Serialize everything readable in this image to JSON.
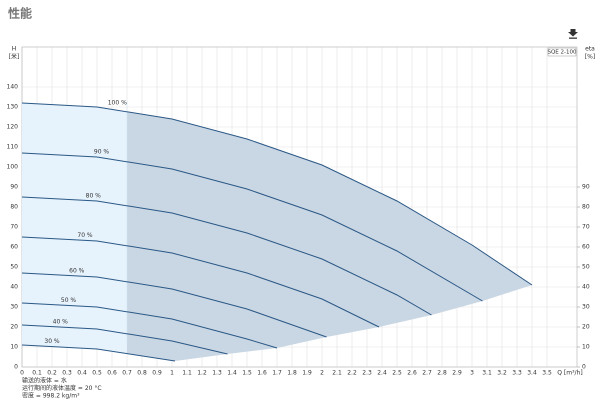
{
  "chart_data": {
    "type": "line",
    "title": "性能",
    "legend": "SQE 2-100",
    "ylabel": "H",
    "yunit": "[米]",
    "y2label": "eta",
    "y2unit": "[%]",
    "xlabel": "Q [m³/h]",
    "notes": [
      "输送的液体 = 水",
      "运行期间的液体温度 = 20 °C",
      "密度 = 998.2 kg/m³"
    ],
    "xlim": [
      0,
      3.7
    ],
    "ylim": [
      0,
      160
    ],
    "y2lim": [
      0,
      160
    ],
    "xticks": [
      0,
      0.1,
      0.2,
      0.3,
      0.4,
      0.5,
      0.6,
      0.7,
      0.8,
      0.9,
      1.0,
      1.1,
      1.2,
      1.3,
      1.4,
      1.5,
      1.6,
      1.7,
      1.8,
      1.9,
      2.0,
      2.1,
      2.2,
      2.3,
      2.4,
      2.5,
      2.6,
      2.7,
      2.8,
      2.9,
      3.0,
      3.1,
      3.2,
      3.3,
      3.4,
      3.5
    ],
    "yticks": [
      0,
      10,
      20,
      30,
      40,
      50,
      60,
      70,
      80,
      90,
      100,
      110,
      120,
      130,
      140
    ],
    "y2ticks": [
      0,
      10,
      20,
      30,
      40,
      50,
      60,
      70,
      80,
      90
    ],
    "grid": true,
    "region_split_x": 0.7,
    "region_colors": [
      "#e6f2fc",
      "#c9d6e3"
    ],
    "series": [
      {
        "name": "100 %",
        "color": "#2a5886",
        "x": [
          0,
          0.5,
          1.0,
          1.5,
          2.0,
          2.5,
          3.0,
          3.4
        ],
        "values": [
          132,
          130,
          124,
          114,
          101,
          83,
          61,
          41
        ]
      },
      {
        "name": "90 %",
        "color": "#2a5886",
        "x": [
          0,
          0.5,
          1.0,
          1.5,
          2.0,
          2.5,
          3.07
        ],
        "values": [
          107,
          105,
          99,
          89,
          76,
          58,
          33
        ]
      },
      {
        "name": "80 %",
        "color": "#2a5886",
        "x": [
          0,
          0.5,
          1.0,
          1.5,
          2.0,
          2.5,
          2.73
        ],
        "values": [
          85,
          83,
          77,
          67,
          54,
          36,
          26
        ]
      },
      {
        "name": "70 %",
        "color": "#2a5886",
        "x": [
          0,
          0.5,
          1.0,
          1.5,
          2.0,
          2.38
        ],
        "values": [
          65,
          63,
          57,
          47,
          34,
          20
        ]
      },
      {
        "name": "60 %",
        "color": "#2a5886",
        "x": [
          0,
          0.5,
          1.0,
          1.5,
          2.03
        ],
        "values": [
          47,
          45,
          39,
          29,
          15
        ]
      },
      {
        "name": "50 %",
        "color": "#2a5886",
        "x": [
          0,
          0.5,
          1.0,
          1.5,
          1.7
        ],
        "values": [
          32,
          30,
          24,
          14,
          9.5
        ]
      },
      {
        "name": "40 %",
        "color": "#2a5886",
        "x": [
          0,
          0.5,
          1.0,
          1.37
        ],
        "values": [
          21,
          19,
          13,
          6.5
        ]
      },
      {
        "name": "30 %",
        "color": "#2a5886",
        "x": [
          0,
          0.5,
          1.02
        ],
        "values": [
          11,
          9,
          3
        ]
      }
    ]
  }
}
